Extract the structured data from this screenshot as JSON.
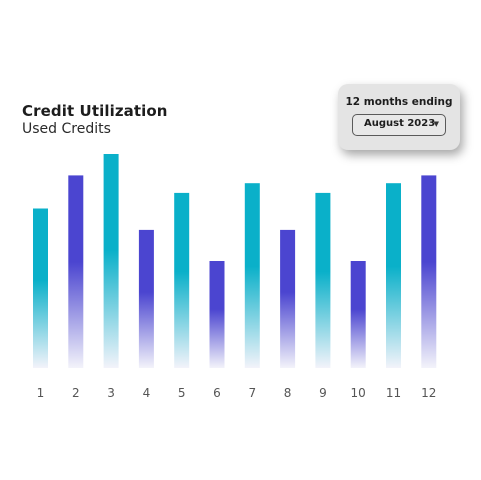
{
  "header": {
    "title": "Credit Utilization",
    "subtitle": "Used Credits"
  },
  "period": {
    "label": "12 months ending",
    "selected": "August 2023"
  },
  "colors": {
    "teal": "#0ab0c9",
    "indigo": "#4b45d0",
    "fade": "#f3f3fa"
  },
  "chart_data": {
    "type": "bar",
    "title": "Credit Utilization",
    "subtitle": "Used Credits",
    "categories": [
      "1",
      "2",
      "3",
      "4",
      "5",
      "6",
      "7",
      "8",
      "9",
      "10",
      "11",
      "12"
    ],
    "values": [
      82,
      99,
      110,
      71,
      90,
      55,
      95,
      71,
      90,
      55,
      95,
      99
    ],
    "bar_colors": [
      "teal",
      "indigo",
      "teal",
      "indigo",
      "teal",
      "indigo",
      "teal",
      "indigo",
      "teal",
      "indigo",
      "teal",
      "indigo"
    ],
    "ylim": [
      0,
      110
    ],
    "grid": false,
    "legend": "none"
  }
}
